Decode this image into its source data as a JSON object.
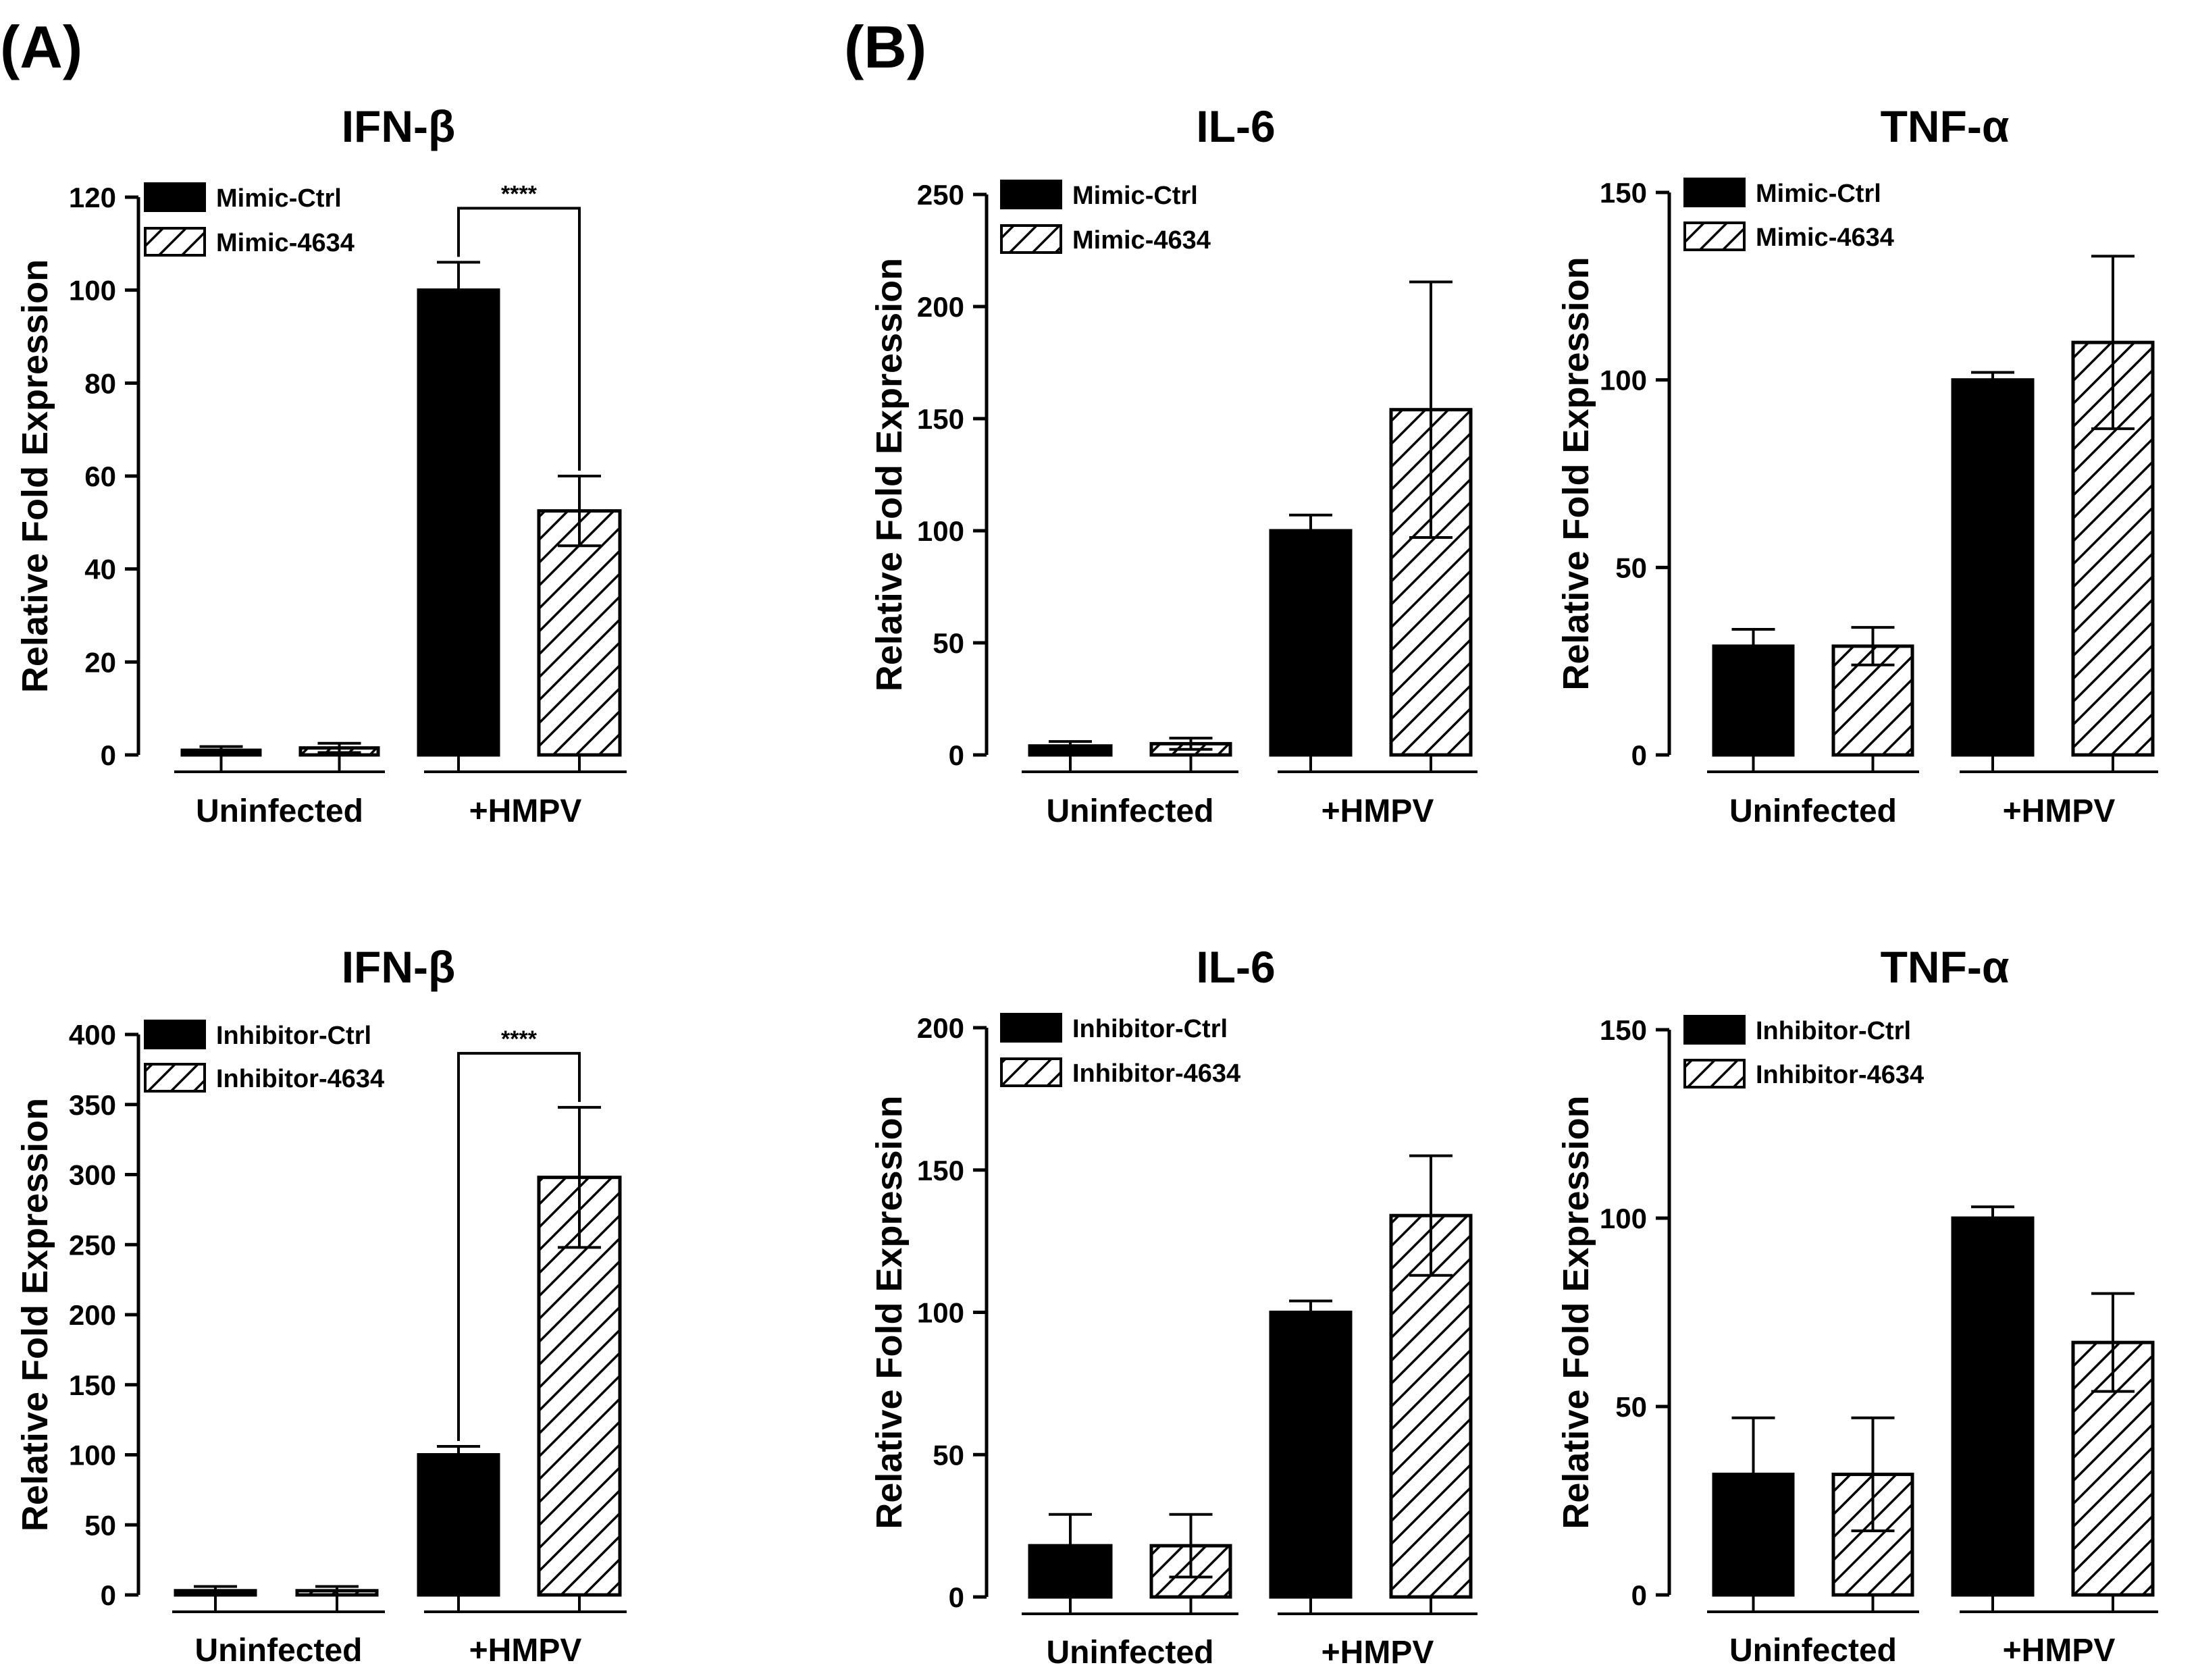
{
  "panel_labels": {
    "a": "(A)",
    "b": "(B)"
  },
  "colors": {
    "ctrl": "#000000",
    "treat_bg": "#ffffff",
    "line": "#000000"
  },
  "chart_data": [
    {
      "type": "bar",
      "panel": "A",
      "title": "IFN-β",
      "ylabel": "Relative Fold Expression",
      "groups": [
        "Uninfected",
        "+HMPV"
      ],
      "ylim": [
        0,
        120
      ],
      "yticks": [
        0,
        20,
        40,
        60,
        80,
        100,
        120
      ],
      "series": [
        {
          "name": "Mimic-Ctrl",
          "fill": "solid",
          "values": [
            1,
            100
          ],
          "errors": [
            0.8,
            6
          ]
        },
        {
          "name": "Mimic-4634",
          "fill": "hatch",
          "values": [
            1.5,
            52.5
          ],
          "errors": [
            1,
            7.5
          ]
        }
      ],
      "significance": {
        "label": "****",
        "group": 1,
        "from_series": 0,
        "to_series": 1
      }
    },
    {
      "type": "bar",
      "panel": "B",
      "title": "IL-6",
      "ylabel": "Relative Fold Expression",
      "groups": [
        "Uninfected",
        "+HMPV"
      ],
      "ylim": [
        0,
        250
      ],
      "yticks": [
        0,
        50,
        100,
        150,
        200,
        250
      ],
      "series": [
        {
          "name": "Mimic-Ctrl",
          "fill": "solid",
          "values": [
            4,
            100
          ],
          "errors": [
            2,
            7
          ]
        },
        {
          "name": "Mimic-4634",
          "fill": "hatch",
          "values": [
            5,
            154
          ],
          "errors": [
            2.5,
            57
          ]
        }
      ]
    },
    {
      "type": "bar",
      "panel": "B",
      "title": "TNF-α",
      "ylabel": "Relative Fold Expression",
      "groups": [
        "Uninfected",
        "+HMPV"
      ],
      "ylim": [
        0,
        150
      ],
      "yticks": [
        0,
        50,
        100,
        150
      ],
      "series": [
        {
          "name": "Mimic-Ctrl",
          "fill": "solid",
          "values": [
            29,
            100
          ],
          "errors": [
            4.5,
            2
          ]
        },
        {
          "name": "Mimic-4634",
          "fill": "hatch",
          "values": [
            29,
            110
          ],
          "errors": [
            5,
            23
          ]
        }
      ]
    },
    {
      "type": "bar",
      "panel": "A",
      "title": "IFN-β",
      "ylabel": "Relative Fold Expression",
      "groups": [
        "Uninfected",
        "+HMPV"
      ],
      "ylim": [
        0,
        400
      ],
      "yticks": [
        0,
        50,
        100,
        150,
        200,
        250,
        300,
        350,
        400
      ],
      "series": [
        {
          "name": "Inhibitor-Ctrl",
          "fill": "solid",
          "values": [
            3,
            100
          ],
          "errors": [
            3,
            6
          ]
        },
        {
          "name": "Inhibitor-4634",
          "fill": "hatch",
          "values": [
            3,
            298
          ],
          "errors": [
            3,
            50
          ]
        }
      ],
      "significance": {
        "label": "****",
        "group": 1,
        "from_series": 0,
        "to_series": 1
      }
    },
    {
      "type": "bar",
      "panel": "B",
      "title": "IL-6",
      "ylabel": "Relative Fold Expression",
      "groups": [
        "Uninfected",
        "+HMPV"
      ],
      "ylim": [
        0,
        200
      ],
      "yticks": [
        0,
        50,
        100,
        150,
        200
      ],
      "series": [
        {
          "name": "Inhibitor-Ctrl",
          "fill": "solid",
          "values": [
            18,
            100
          ],
          "errors": [
            11,
            4
          ]
        },
        {
          "name": "Inhibitor-4634",
          "fill": "hatch",
          "values": [
            18,
            134
          ],
          "errors": [
            11,
            21
          ]
        }
      ]
    },
    {
      "type": "bar",
      "panel": "B",
      "title": "TNF-α",
      "ylabel": "Relative Fold Expression",
      "groups": [
        "Uninfected",
        "+HMPV"
      ],
      "ylim": [
        0,
        150
      ],
      "yticks": [
        0,
        50,
        100,
        150
      ],
      "series": [
        {
          "name": "Inhibitor-Ctrl",
          "fill": "solid",
          "values": [
            32,
            100
          ],
          "errors": [
            15,
            3
          ]
        },
        {
          "name": "Inhibitor-4634",
          "fill": "hatch",
          "values": [
            32,
            67
          ],
          "errors": [
            15,
            13
          ]
        }
      ]
    }
  ]
}
